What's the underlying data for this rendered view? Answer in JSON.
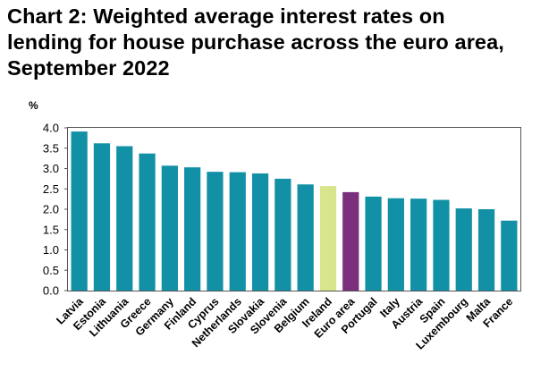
{
  "chart_title_lines": [
    "Chart 2: Weighted average interest rates on",
    "lending for house purchase across the euro area,",
    "September 2022"
  ],
  "chart_data": {
    "type": "bar",
    "title": "Chart 2: Weighted average interest rates on lending for house purchase across the euro area, September 2022",
    "xlabel": "",
    "ylabel": "%",
    "ylim": [
      0,
      4.0
    ],
    "yticks": [
      "0.0",
      "0.5",
      "1.0",
      "1.5",
      "2.0",
      "2.5",
      "3.0",
      "3.5",
      "4.0"
    ],
    "grid": false,
    "legend": "none",
    "categories": [
      "Latvia",
      "Estonia",
      "Lithuania",
      "Greece",
      "Germany",
      "Finland",
      "Cyprus",
      "Netherlands",
      "Slovakia",
      "Slovenia",
      "Belgium",
      "Ireland",
      "Euro area",
      "Portugal",
      "Italy",
      "Austria",
      "Spain",
      "Luxembourg",
      "Malta",
      "France"
    ],
    "values": [
      3.91,
      3.62,
      3.55,
      3.37,
      3.07,
      3.03,
      2.92,
      2.91,
      2.88,
      2.75,
      2.61,
      2.57,
      2.42,
      2.31,
      2.27,
      2.26,
      2.23,
      2.02,
      2.0,
      1.72
    ],
    "colors": {
      "default": "#1290a6",
      "Ireland": "#d8e58c",
      "Euro area": "#7a2f7c"
    }
  }
}
